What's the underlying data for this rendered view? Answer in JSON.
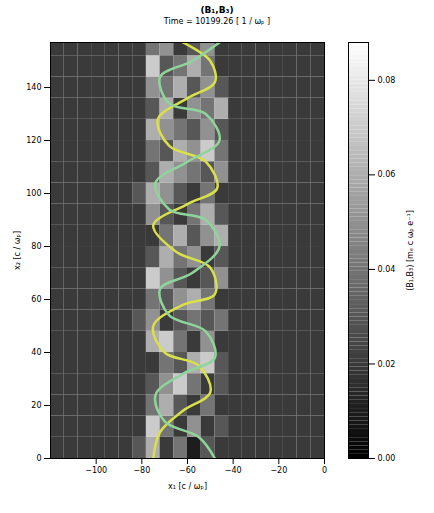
{
  "chart_data": {
    "type": "heatmap",
    "title": "(B₁,B₃)",
    "subtitle": "Time = 10199.26 [ 1 / ωₚ ]",
    "x_label": "x₁ [c / ωₚ]",
    "y_label": "x₂ [c / ωₚ]",
    "xlim": [
      -120,
      0
    ],
    "ylim": [
      0,
      157
    ],
    "xticks": [
      -100,
      -80,
      -60,
      -40,
      -20,
      0
    ],
    "yticks": [
      0,
      20,
      40,
      60,
      80,
      100,
      120,
      140
    ],
    "x": [
      -117,
      -111,
      -105,
      -99,
      -93,
      -87,
      -81,
      -75,
      -69,
      -63,
      -57,
      -51,
      -45,
      -39,
      -33,
      -27,
      -21,
      -15,
      -9,
      -3
    ],
    "y": [
      4,
      12,
      20,
      28,
      36,
      44,
      52,
      60,
      68,
      76,
      84,
      92,
      100,
      108,
      116,
      124,
      132,
      140,
      148,
      156
    ],
    "cells": [
      [
        0.02,
        0.02,
        0.02,
        0.02,
        0.02,
        0.02,
        0.03,
        0.06,
        0.02,
        0.04,
        0.01,
        0.03,
        0.02,
        0.02,
        0.02,
        0.02,
        0.02,
        0.02,
        0.02,
        0.02
      ],
      [
        0.02,
        0.02,
        0.02,
        0.02,
        0.02,
        0.02,
        0.02,
        0.07,
        0.04,
        0.02,
        0.05,
        0.02,
        0.03,
        0.02,
        0.02,
        0.02,
        0.02,
        0.02,
        0.02,
        0.02
      ],
      [
        0.02,
        0.02,
        0.02,
        0.02,
        0.02,
        0.02,
        0.02,
        0.04,
        0.06,
        0.03,
        0.02,
        0.04,
        0.02,
        0.02,
        0.02,
        0.02,
        0.02,
        0.02,
        0.02,
        0.02
      ],
      [
        0.02,
        0.02,
        0.02,
        0.02,
        0.02,
        0.02,
        0.02,
        0.03,
        0.05,
        0.07,
        0.04,
        0.02,
        0.03,
        0.02,
        0.02,
        0.02,
        0.02,
        0.02,
        0.02,
        0.02
      ],
      [
        0.02,
        0.02,
        0.02,
        0.02,
        0.02,
        0.02,
        0.02,
        0.02,
        0.04,
        0.03,
        0.06,
        0.07,
        0.03,
        0.02,
        0.02,
        0.02,
        0.02,
        0.02,
        0.02,
        0.02
      ],
      [
        0.02,
        0.02,
        0.02,
        0.02,
        0.02,
        0.02,
        0.02,
        0.06,
        0.07,
        0.04,
        0.02,
        0.05,
        0.02,
        0.02,
        0.02,
        0.02,
        0.02,
        0.02,
        0.02,
        0.02
      ],
      [
        0.02,
        0.02,
        0.02,
        0.02,
        0.02,
        0.02,
        0.03,
        0.05,
        0.02,
        0.03,
        0.04,
        0.03,
        0.04,
        0.02,
        0.02,
        0.02,
        0.02,
        0.02,
        0.02,
        0.02
      ],
      [
        0.02,
        0.02,
        0.02,
        0.02,
        0.02,
        0.02,
        0.02,
        0.04,
        0.03,
        0.05,
        0.06,
        0.04,
        0.02,
        0.02,
        0.02,
        0.02,
        0.02,
        0.02,
        0.02,
        0.02
      ],
      [
        0.02,
        0.02,
        0.02,
        0.02,
        0.02,
        0.02,
        0.02,
        0.07,
        0.05,
        0.03,
        0.02,
        0.03,
        0.05,
        0.02,
        0.02,
        0.02,
        0.02,
        0.02,
        0.02,
        0.02
      ],
      [
        0.02,
        0.02,
        0.02,
        0.02,
        0.02,
        0.02,
        0.02,
        0.03,
        0.06,
        0.04,
        0.05,
        0.02,
        0.03,
        0.02,
        0.02,
        0.02,
        0.02,
        0.02,
        0.02,
        0.02
      ],
      [
        0.02,
        0.02,
        0.02,
        0.02,
        0.02,
        0.02,
        0.02,
        0.02,
        0.04,
        0.06,
        0.03,
        0.05,
        0.06,
        0.02,
        0.02,
        0.02,
        0.02,
        0.02,
        0.02,
        0.02
      ],
      [
        0.02,
        0.02,
        0.02,
        0.02,
        0.02,
        0.02,
        0.02,
        0.05,
        0.03,
        0.02,
        0.04,
        0.06,
        0.03,
        0.02,
        0.02,
        0.02,
        0.02,
        0.02,
        0.02,
        0.02
      ],
      [
        0.02,
        0.02,
        0.02,
        0.02,
        0.02,
        0.02,
        0.03,
        0.06,
        0.05,
        0.03,
        0.02,
        0.04,
        0.02,
        0.02,
        0.02,
        0.02,
        0.02,
        0.02,
        0.02,
        0.02
      ],
      [
        0.02,
        0.02,
        0.02,
        0.02,
        0.02,
        0.02,
        0.02,
        0.03,
        0.06,
        0.05,
        0.04,
        0.03,
        0.05,
        0.02,
        0.02,
        0.02,
        0.02,
        0.02,
        0.02,
        0.02
      ],
      [
        0.02,
        0.02,
        0.02,
        0.02,
        0.02,
        0.02,
        0.02,
        0.04,
        0.03,
        0.06,
        0.05,
        0.07,
        0.04,
        0.02,
        0.02,
        0.02,
        0.02,
        0.02,
        0.02,
        0.02
      ],
      [
        0.02,
        0.02,
        0.02,
        0.02,
        0.02,
        0.02,
        0.02,
        0.06,
        0.05,
        0.04,
        0.03,
        0.05,
        0.03,
        0.02,
        0.02,
        0.02,
        0.02,
        0.02,
        0.02,
        0.02
      ],
      [
        0.02,
        0.02,
        0.02,
        0.02,
        0.02,
        0.02,
        0.02,
        0.03,
        0.06,
        0.02,
        0.05,
        0.04,
        0.06,
        0.02,
        0.02,
        0.02,
        0.02,
        0.02,
        0.02,
        0.02
      ],
      [
        0.02,
        0.02,
        0.02,
        0.02,
        0.02,
        0.02,
        0.02,
        0.05,
        0.04,
        0.06,
        0.03,
        0.05,
        0.03,
        0.02,
        0.02,
        0.02,
        0.02,
        0.02,
        0.02,
        0.02
      ],
      [
        0.02,
        0.02,
        0.02,
        0.02,
        0.02,
        0.02,
        0.02,
        0.07,
        0.03,
        0.04,
        0.06,
        0.04,
        0.02,
        0.02,
        0.02,
        0.02,
        0.02,
        0.02,
        0.02,
        0.02
      ],
      [
        0.02,
        0.02,
        0.02,
        0.02,
        0.02,
        0.02,
        0.02,
        0.04,
        0.05,
        0.02,
        0.03,
        0.05,
        0.02,
        0.02,
        0.02,
        0.02,
        0.02,
        0.02,
        0.02,
        0.02
      ]
    ],
    "colorbar": {
      "label": "(B₁,B₃) [mₑ c ωₚ e⁻¹]",
      "range": [
        0,
        0.088
      ],
      "ticks": [
        {
          "value": 0,
          "label": "0.00"
        },
        {
          "value": 0.02,
          "label": "0.02"
        },
        {
          "value": 0.04,
          "label": "0.04"
        },
        {
          "value": 0.06,
          "label": "0.06"
        },
        {
          "value": 0.08,
          "label": "0.08"
        }
      ]
    },
    "field_lines": [
      {
        "color": "#d8e04a",
        "x": [
          -75,
          -72,
          -62,
          -50,
          -55,
          -70,
          -75,
          -62,
          -48,
          -50,
          -65,
          -75,
          -60,
          -47,
          -52,
          -68,
          -73,
          -60,
          -48,
          -50,
          -62
        ],
        "y": [
          0,
          10,
          18,
          25,
          35,
          40,
          50,
          58,
          62,
          72,
          78,
          88,
          96,
          102,
          112,
          118,
          128,
          136,
          142,
          150,
          157
        ]
      },
      {
        "color": "#8fd49a",
        "x": [
          -48,
          -55,
          -70,
          -74,
          -62,
          -48,
          -52,
          -68,
          -72,
          -58,
          -46,
          -52,
          -68,
          -74,
          -60,
          -46,
          -52,
          -68,
          -72,
          -58,
          -46
        ],
        "y": [
          0,
          8,
          14,
          24,
          32,
          38,
          48,
          54,
          64,
          70,
          80,
          90,
          94,
          104,
          112,
          120,
          130,
          134,
          144,
          150,
          157
        ]
      }
    ]
  }
}
